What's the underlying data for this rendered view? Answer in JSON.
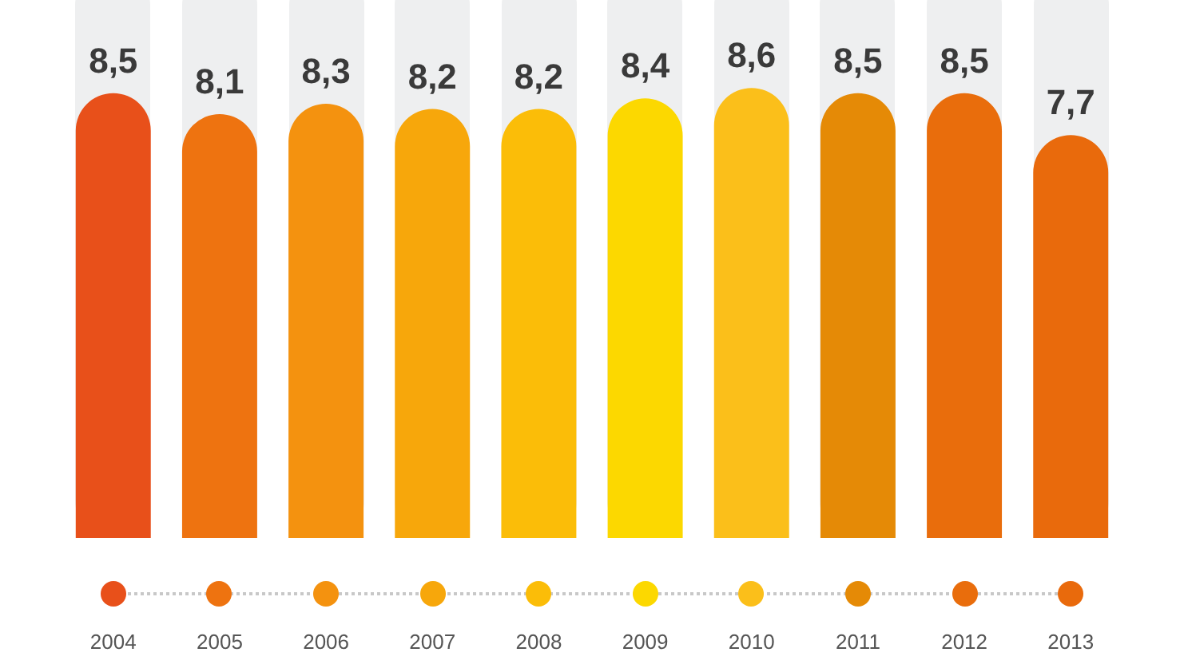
{
  "chart_data": {
    "type": "bar",
    "categories": [
      "2004",
      "2005",
      "2006",
      "2007",
      "2008",
      "2009",
      "2010",
      "2011",
      "2012",
      "2013"
    ],
    "values": [
      8.5,
      8.1,
      8.3,
      8.2,
      8.2,
      8.4,
      8.6,
      8.5,
      8.5,
      7.7
    ],
    "value_labels": [
      "8,5",
      "8,1",
      "8,3",
      "8,2",
      "8,2",
      "8,4",
      "8,6",
      "8,5",
      "8,5",
      "7,7"
    ],
    "colors": [
      "#e8501a",
      "#ee7310",
      "#f4920f",
      "#f7a70b",
      "#fbbd08",
      "#fcd800",
      "#fbbf1a",
      "#e58a06",
      "#e96d0c",
      "#e96a0c"
    ],
    "tick_labels": "x",
    "grid": false,
    "legend": false
  }
}
